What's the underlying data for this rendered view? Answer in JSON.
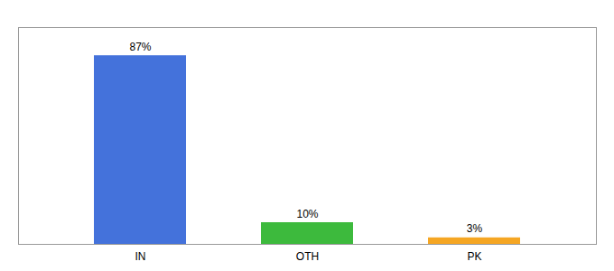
{
  "chart_data": {
    "type": "bar",
    "categories": [
      "IN",
      "OTH",
      "PK"
    ],
    "values": [
      87,
      10,
      3
    ],
    "value_labels": [
      "87%",
      "10%",
      "3%"
    ],
    "colors": [
      "#4472db",
      "#3dba3d",
      "#f5a623"
    ],
    "ylim": [
      0,
      100
    ],
    "grid": false,
    "data_labels": true,
    "tick_labels": "x"
  }
}
